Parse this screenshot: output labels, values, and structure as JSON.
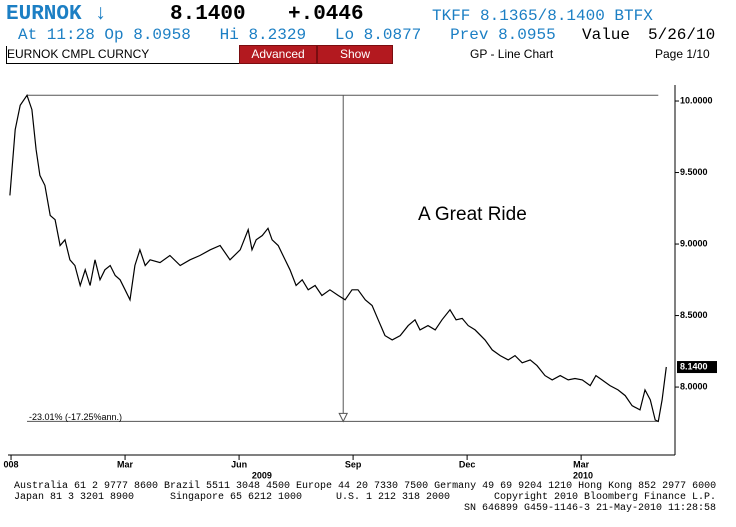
{
  "header": {
    "ticker": "EURNOK ↓",
    "price": "8.1400",
    "change": "+.0446",
    "quote": "TKFF 8.1365/8.1400 BTFX",
    "stats": "At 11:28 Op 8.0958   Hi 8.2329   Lo 8.0877   Prev 8.0955",
    "value_label": "Value",
    "date": "5/26/10",
    "security": "EURNOK CMPL CURNCY",
    "buttons": [
      "Advanced",
      "Show"
    ],
    "chart_kind": "GP - Line Chart",
    "page": "Page 1/10"
  },
  "chart_data": {
    "type": "line",
    "color": "#000000",
    "x": [
      -1.03,
      -0.89,
      -0.76,
      -0.58,
      -0.45,
      -0.34,
      -0.24,
      -0.11,
      0.03,
      0.16,
      0.29,
      0.42,
      0.55,
      0.68,
      0.82,
      0.95,
      1.08,
      1.21,
      1.34,
      1.47,
      1.61,
      1.74,
      1.87,
      2.0,
      2.13,
      2.26,
      2.39,
      2.53,
      2.66,
      2.92,
      3.18,
      3.45,
      3.71,
      3.97,
      4.24,
      4.5,
      4.76,
      5.03,
      5.24,
      5.34,
      5.45,
      5.61,
      5.76,
      5.87,
      6.03,
      6.21,
      6.34,
      6.5,
      6.66,
      6.82,
      7.0,
      7.18,
      7.39,
      7.61,
      7.79,
      7.97,
      8.13,
      8.32,
      8.5,
      8.66,
      8.84,
      9.03,
      9.24,
      9.45,
      9.63,
      9.76,
      9.97,
      10.16,
      10.34,
      10.55,
      10.71,
      10.87,
      11.03,
      11.21,
      11.47,
      11.66,
      11.87,
      12.08,
      12.26,
      12.45,
      12.66,
      12.84,
      13.05,
      13.24,
      13.45,
      13.66,
      13.84,
      14.03,
      14.24,
      14.39,
      14.55,
      14.76,
      14.97,
      15.16,
      15.34,
      15.55,
      15.68,
      15.82,
      15.95,
      16.03,
      16.13,
      16.24
    ],
    "values": [
      9.34,
      9.8,
      9.97,
      10.04,
      9.94,
      9.66,
      9.48,
      9.41,
      9.2,
      9.17,
      8.99,
      9.03,
      8.89,
      8.85,
      8.71,
      8.82,
      8.71,
      8.89,
      8.75,
      8.82,
      8.85,
      8.78,
      8.75,
      8.68,
      8.61,
      8.85,
      8.96,
      8.85,
      8.89,
      8.87,
      8.92,
      8.85,
      8.89,
      8.92,
      8.96,
      8.99,
      8.89,
      8.96,
      9.1,
      8.96,
      9.03,
      9.06,
      9.11,
      9.03,
      8.99,
      8.89,
      8.82,
      8.71,
      8.75,
      8.68,
      8.71,
      8.64,
      8.68,
      8.64,
      8.61,
      8.68,
      8.68,
      8.61,
      8.57,
      8.47,
      8.36,
      8.33,
      8.36,
      8.43,
      8.47,
      8.4,
      8.43,
      8.4,
      8.47,
      8.54,
      8.47,
      8.48,
      8.43,
      8.4,
      8.33,
      8.26,
      8.22,
      8.19,
      8.22,
      8.17,
      8.19,
      8.15,
      8.08,
      8.05,
      8.08,
      8.05,
      8.06,
      8.05,
      8.01,
      8.08,
      8.05,
      8.01,
      7.98,
      7.94,
      7.87,
      7.84,
      7.98,
      7.91,
      7.77,
      7.76,
      7.91,
      8.14
    ],
    "xlim": [
      -1.08,
      16.47
    ],
    "ylim": [
      7.525,
      10.112
    ],
    "xticks": [
      {
        "value": -1,
        "label": "008"
      },
      {
        "value": 2,
        "label": "Mar"
      },
      {
        "value": 5,
        "label": "Jun"
      },
      {
        "value": 8,
        "label": "Sep"
      },
      {
        "value": 11,
        "label": "Dec"
      },
      {
        "value": 14,
        "label": "Mar"
      }
    ],
    "year_labels": [
      {
        "value": 5.6,
        "label": "2009"
      },
      {
        "value": 14.05,
        "label": "2010"
      }
    ],
    "yticks": [
      {
        "value": 8,
        "label": "8.0000"
      },
      {
        "value": 8.5,
        "label": "8.5000"
      },
      {
        "value": 9,
        "label": "9.0000"
      },
      {
        "value": 9.5,
        "label": "9.5000"
      },
      {
        "value": 10,
        "label": "10.0000"
      }
    ],
    "last_value_label": "8.1400",
    "annotation": {
      "high": 10.04,
      "low": 7.76,
      "x_start": -0.58,
      "x_end": 16.03,
      "x_arrow": 7.74,
      "label": "-23.01% (-17.25%ann.)"
    },
    "text_annotation": "A Great Ride"
  },
  "footer": {
    "line1": "Australia 61 2 9777 8600 Brazil 5511 3048 4500 Europe 44 20 7330 7500 Germany 49 69 9204 1210 Hong Kong 852 2977 6000",
    "line2": [
      "Japan 81 3 3201 8900",
      "Singapore 65 6212 1000",
      "U.S. 1 212 318 2000",
      "Copyright 2010 Bloomberg Finance L.P."
    ],
    "line3": "SN 646899 G459-1146-3 21-May-2010 11:28:58"
  }
}
